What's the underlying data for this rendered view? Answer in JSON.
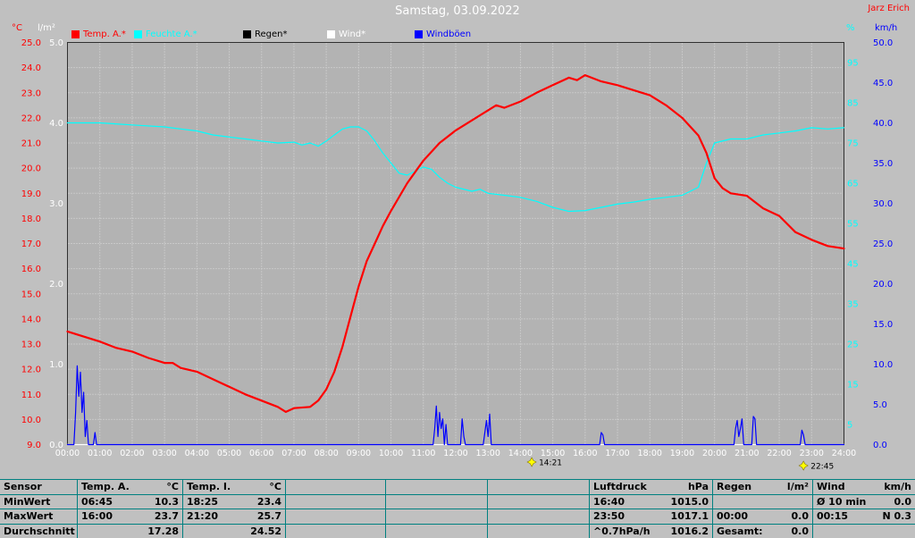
{
  "header": {
    "title": "Samstag, 03.09.2022",
    "station": "Jarz Erich"
  },
  "legend": [
    {
      "label": "Temp. A.*",
      "color": "#ff0000"
    },
    {
      "label": "Feuchte A.*",
      "color": "#00ffff"
    },
    {
      "label": "Regen*",
      "color": "#000000"
    },
    {
      "label": "Wind*",
      "color": "#ffffff"
    },
    {
      "label": "Windböen",
      "color": "#0000ff"
    }
  ],
  "markers": [
    {
      "time": "14:21"
    },
    {
      "time": "22:45"
    }
  ],
  "chart_data": {
    "type": "line",
    "title": "Samstag, 03.09.2022",
    "colors": {
      "page_bg": "#c0c0c0",
      "plot_bg": "#b3b3b3",
      "grid": "#dcdcdc",
      "border": "#303030",
      "x_labels": "#ffffff",
      "marker": "#ffff00",
      "table_line": "#008080"
    },
    "x_ticks": [
      "00:00",
      "01:00",
      "02:00",
      "03:00",
      "04:00",
      "05:00",
      "06:00",
      "07:00",
      "08:00",
      "09:00",
      "10:00",
      "11:00",
      "12:00",
      "13:00",
      "14:00",
      "15:00",
      "16:00",
      "17:00",
      "18:00",
      "19:00",
      "20:00",
      "21:00",
      "22:00",
      "23:00",
      "24:00"
    ],
    "axes": {
      "temp": {
        "label": "°C",
        "color": "#ff0000",
        "min": 9,
        "max": 25,
        "decimals": 1,
        "ticks": [
          25,
          24,
          23,
          22,
          21,
          20,
          19,
          18,
          17,
          16,
          15,
          14,
          13,
          12,
          11,
          10,
          9
        ]
      },
      "rain": {
        "label": "l/m²",
        "color": "#ffffff",
        "min": 0,
        "max": 5,
        "decimals": 1,
        "ticks": [
          5,
          4,
          3,
          2,
          1,
          0
        ]
      },
      "hum": {
        "label": "%",
        "color": "#00ffff",
        "min": 0,
        "max": 100,
        "decimals": 0,
        "ticks": [
          95,
          85,
          75,
          65,
          55,
          45,
          35,
          25,
          15,
          5
        ]
      },
      "wind": {
        "label": "km/h",
        "color": "#0000ff",
        "min": 0,
        "max": 50,
        "decimals": 1,
        "ticks": [
          50,
          45,
          40,
          35,
          30,
          25,
          20,
          15,
          10,
          5,
          0
        ]
      }
    },
    "series": [
      {
        "id": "rain",
        "name": "Regen*",
        "axis": "rain",
        "color": "#000000",
        "width": 1.2,
        "points": [
          [
            0,
            0
          ],
          [
            24,
            0
          ]
        ]
      },
      {
        "id": "wind",
        "name": "Wind*",
        "axis": "wind",
        "color": "#ffffff",
        "width": 1.4,
        "points": [
          [
            0,
            0
          ],
          [
            24,
            0
          ]
        ]
      },
      {
        "id": "humidity",
        "name": "Feuchte A.*",
        "axis": "hum",
        "color": "#00ffff",
        "width": 1.2,
        "points": [
          [
            0,
            80
          ],
          [
            1,
            80
          ],
          [
            2,
            79.5
          ],
          [
            3,
            79
          ],
          [
            3.5,
            78.5
          ],
          [
            4,
            78
          ],
          [
            4.5,
            77
          ],
          [
            5,
            76.5
          ],
          [
            5.5,
            76
          ],
          [
            6,
            75.5
          ],
          [
            6.5,
            75
          ],
          [
            7,
            75.2
          ],
          [
            7.25,
            74.5
          ],
          [
            7.5,
            75
          ],
          [
            7.75,
            74.2
          ],
          [
            8,
            75.5
          ],
          [
            8.25,
            77
          ],
          [
            8.5,
            78.5
          ],
          [
            8.75,
            79
          ],
          [
            9,
            79
          ],
          [
            9.25,
            78
          ],
          [
            9.5,
            75.5
          ],
          [
            9.75,
            72.5
          ],
          [
            10,
            70
          ],
          [
            10.25,
            67.5
          ],
          [
            10.5,
            67
          ],
          [
            10.75,
            68
          ],
          [
            11,
            69
          ],
          [
            11.25,
            68.5
          ],
          [
            11.5,
            66.5
          ],
          [
            11.75,
            65
          ],
          [
            12,
            64
          ],
          [
            12.5,
            63
          ],
          [
            12.75,
            63.5
          ],
          [
            13,
            62.5
          ],
          [
            13.5,
            62
          ],
          [
            14,
            61.5
          ],
          [
            14.5,
            60.5
          ],
          [
            15,
            59
          ],
          [
            15.5,
            58
          ],
          [
            16,
            58.2
          ],
          [
            16.5,
            59
          ],
          [
            17,
            59.8
          ],
          [
            17.5,
            60.3
          ],
          [
            18,
            61
          ],
          [
            18.5,
            61.5
          ],
          [
            19,
            62
          ],
          [
            19.5,
            64
          ],
          [
            19.75,
            70
          ],
          [
            20,
            75
          ],
          [
            20.5,
            76
          ],
          [
            21,
            76
          ],
          [
            21.5,
            77
          ],
          [
            22,
            77.5
          ],
          [
            22.5,
            78
          ],
          [
            23,
            78.8
          ],
          [
            23.5,
            78.5
          ],
          [
            24,
            78.8
          ]
        ]
      },
      {
        "id": "temp",
        "name": "Temp. A.*",
        "axis": "temp",
        "color": "#ff0000",
        "width": 2.2,
        "points": [
          [
            0,
            13.5
          ],
          [
            0.5,
            13.3
          ],
          [
            1,
            13.1
          ],
          [
            1.5,
            12.85
          ],
          [
            2,
            12.7
          ],
          [
            2.5,
            12.45
          ],
          [
            3,
            12.25
          ],
          [
            3.25,
            12.25
          ],
          [
            3.5,
            12.05
          ],
          [
            4,
            11.9
          ],
          [
            4.5,
            11.6
          ],
          [
            5,
            11.3
          ],
          [
            5.5,
            11.0
          ],
          [
            6,
            10.75
          ],
          [
            6.5,
            10.5
          ],
          [
            6.75,
            10.3
          ],
          [
            7,
            10.45
          ],
          [
            7.5,
            10.5
          ],
          [
            7.75,
            10.75
          ],
          [
            8,
            11.2
          ],
          [
            8.25,
            11.9
          ],
          [
            8.5,
            12.9
          ],
          [
            8.75,
            14.1
          ],
          [
            9,
            15.3
          ],
          [
            9.25,
            16.3
          ],
          [
            9.5,
            17.0
          ],
          [
            9.75,
            17.7
          ],
          [
            10,
            18.3
          ],
          [
            10.5,
            19.4
          ],
          [
            11,
            20.3
          ],
          [
            11.5,
            21.0
          ],
          [
            12,
            21.5
          ],
          [
            12.5,
            21.9
          ],
          [
            13,
            22.3
          ],
          [
            13.25,
            22.5
          ],
          [
            13.5,
            22.4
          ],
          [
            14,
            22.65
          ],
          [
            14.5,
            23.0
          ],
          [
            15,
            23.3
          ],
          [
            15.5,
            23.6
          ],
          [
            15.75,
            23.5
          ],
          [
            16,
            23.7
          ],
          [
            16.5,
            23.45
          ],
          [
            17,
            23.3
          ],
          [
            17.5,
            23.1
          ],
          [
            18,
            22.9
          ],
          [
            18.5,
            22.5
          ],
          [
            19,
            22.0
          ],
          [
            19.5,
            21.3
          ],
          [
            19.75,
            20.6
          ],
          [
            20,
            19.6
          ],
          [
            20.25,
            19.2
          ],
          [
            20.5,
            19.0
          ],
          [
            21,
            18.9
          ],
          [
            21.5,
            18.4
          ],
          [
            22,
            18.1
          ],
          [
            22.5,
            17.45
          ],
          [
            23,
            17.15
          ],
          [
            23.5,
            16.9
          ],
          [
            24,
            16.8
          ]
        ]
      },
      {
        "id": "gusts",
        "name": "Windböen",
        "axis": "wind",
        "color": "#0000ff",
        "width": 1.2,
        "points": [
          [
            0,
            0
          ],
          [
            0.2,
            0
          ],
          [
            0.25,
            4
          ],
          [
            0.3,
            9.8
          ],
          [
            0.35,
            6
          ],
          [
            0.4,
            9
          ],
          [
            0.45,
            4
          ],
          [
            0.5,
            6.5
          ],
          [
            0.55,
            1
          ],
          [
            0.6,
            3
          ],
          [
            0.65,
            0
          ],
          [
            0.8,
            0
          ],
          [
            0.85,
            1.5
          ],
          [
            0.9,
            0
          ],
          [
            11.3,
            0
          ],
          [
            11.35,
            2
          ],
          [
            11.4,
            4.8
          ],
          [
            11.45,
            1
          ],
          [
            11.5,
            4
          ],
          [
            11.55,
            2
          ],
          [
            11.6,
            3.2
          ],
          [
            11.65,
            0
          ],
          [
            11.7,
            2.5
          ],
          [
            11.75,
            0
          ],
          [
            12.15,
            0
          ],
          [
            12.2,
            3.2
          ],
          [
            12.25,
            1
          ],
          [
            12.3,
            0
          ],
          [
            12.85,
            0
          ],
          [
            12.9,
            1.5
          ],
          [
            12.95,
            3
          ],
          [
            13,
            1
          ],
          [
            13.05,
            3.8
          ],
          [
            13.1,
            0
          ],
          [
            16.45,
            0
          ],
          [
            16.5,
            1.5
          ],
          [
            16.55,
            1.2
          ],
          [
            16.6,
            0
          ],
          [
            20.6,
            0
          ],
          [
            20.65,
            2
          ],
          [
            20.7,
            3
          ],
          [
            20.75,
            1
          ],
          [
            20.8,
            2
          ],
          [
            20.85,
            3.2
          ],
          [
            20.9,
            0
          ],
          [
            21.15,
            0
          ],
          [
            21.2,
            3.5
          ],
          [
            21.25,
            3.2
          ],
          [
            21.3,
            0
          ],
          [
            22.65,
            0
          ],
          [
            22.7,
            1.8
          ],
          [
            22.75,
            1.2
          ],
          [
            22.8,
            0
          ],
          [
            24,
            0
          ]
        ]
      }
    ]
  },
  "table": {
    "header": {
      "sensor": "Sensor",
      "temp_a": "Temp. A.",
      "temp_a_unit": "°C",
      "temp_i": "Temp. I.",
      "temp_i_unit": "°C",
      "luftdruck": "Luftdruck",
      "luftdruck_unit": "hPa",
      "regen": "Regen",
      "regen_unit": "l/m²",
      "wind": "Wind",
      "wind_unit": "km/h"
    },
    "rows": [
      {
        "label": "MinWert",
        "temp_a_time": "06:45",
        "temp_a": "10.3",
        "temp_i_time": "18:25",
        "temp_i": "23.4",
        "luftdruck_time": "16:40",
        "luftdruck": "1015.0",
        "regen_time": "",
        "regen": "",
        "wind_time": "Ø 10 min.",
        "wind": "0.0"
      },
      {
        "label": "MaxWert",
        "temp_a_time": "16:00",
        "temp_a": "23.7",
        "temp_i_time": "21:20",
        "temp_i": "25.7",
        "luftdruck_time": "23:50",
        "luftdruck": "1017.1",
        "regen_time": "00:00",
        "regen": "0.0",
        "wind_time": "00:15",
        "wind": "N 0.3"
      },
      {
        "label": "Durchschnitt",
        "temp_a_time": "",
        "temp_a": "17.28",
        "temp_i_time": "",
        "temp_i": "24.52",
        "luftdruck_time": "^0.7hPa/h",
        "luftdruck": "1016.2",
        "regen_time": "Gesamt:",
        "regen": "0.0",
        "wind_time": "",
        "wind": ""
      }
    ]
  }
}
